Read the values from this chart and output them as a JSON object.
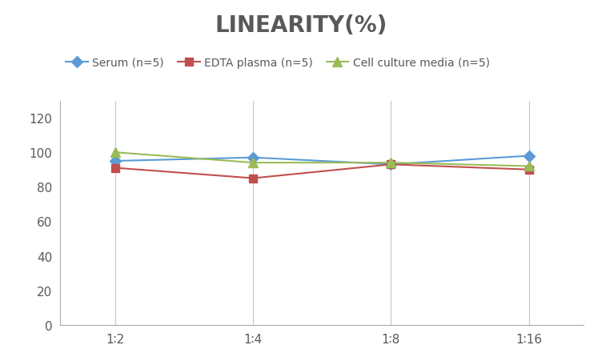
{
  "title": "LINEARITY(%)",
  "x_labels": [
    "1∶2",
    "1∶4",
    "1∶8",
    "1∶16"
  ],
  "x_positions": [
    0,
    1,
    2,
    3
  ],
  "series": [
    {
      "label": "Serum (n=5)",
      "values": [
        95,
        97,
        93,
        98
      ],
      "color": "#5B9BD5",
      "marker": "D",
      "markersize": 7,
      "linewidth": 1.5
    },
    {
      "label": "EDTA plasma (n=5)",
      "values": [
        91,
        85,
        93,
        90
      ],
      "color": "#C0504D",
      "marker": "s",
      "markersize": 7,
      "linewidth": 1.5
    },
    {
      "label": "Cell culture media (n=5)",
      "values": [
        100,
        94,
        94,
        92
      ],
      "color": "#9BBB59",
      "marker": "^",
      "markersize": 8,
      "linewidth": 1.5
    }
  ],
  "ylim": [
    0,
    130
  ],
  "yticks": [
    0,
    20,
    40,
    60,
    80,
    100,
    120
  ],
  "xlim": [
    -0.4,
    3.4
  ],
  "background_color": "#ffffff",
  "grid_color": "#c8c8c8",
  "title_fontsize": 20,
  "title_color": "#595959",
  "legend_fontsize": 10,
  "tick_fontsize": 11,
  "tick_color": "#595959"
}
